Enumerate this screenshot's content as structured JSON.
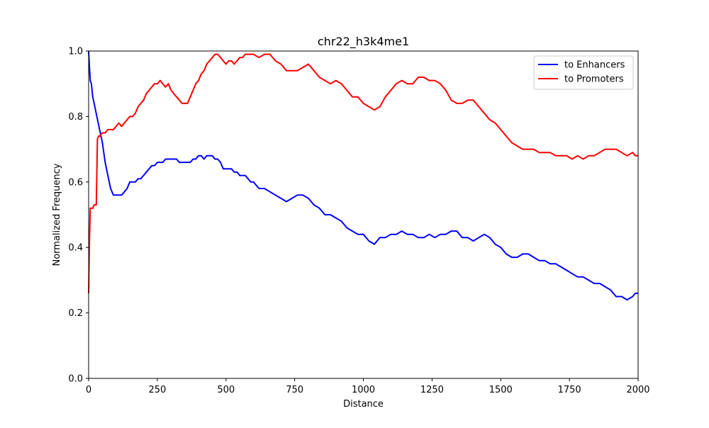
{
  "chart_data": {
    "type": "line",
    "title": "chr22_h3k4me1",
    "xlabel": "Distance",
    "ylabel": "Normalized Frequency",
    "xlim": [
      0,
      2000
    ],
    "ylim": [
      0,
      1
    ],
    "xticks": [
      "0",
      "250",
      "500",
      "750",
      "1000",
      "1250",
      "1500",
      "1750",
      "2000"
    ],
    "yticks": [
      "0.0",
      "0.2",
      "0.4",
      "0.6",
      "0.8",
      "1.0"
    ],
    "grid": false,
    "legend_position": "top-right",
    "series": [
      {
        "name": "to Enhancers",
        "color": "#0000ff",
        "x": [
          0,
          3,
          6,
          10,
          15,
          20,
          30,
          40,
          50,
          60,
          70,
          80,
          90,
          100,
          110,
          120,
          130,
          140,
          150,
          160,
          170,
          180,
          190,
          200,
          210,
          220,
          230,
          240,
          250,
          260,
          270,
          280,
          290,
          300,
          310,
          320,
          330,
          340,
          350,
          360,
          370,
          380,
          390,
          400,
          410,
          420,
          430,
          440,
          450,
          460,
          470,
          480,
          490,
          500,
          510,
          520,
          530,
          540,
          550,
          560,
          570,
          580,
          590,
          600,
          620,
          640,
          660,
          680,
          700,
          720,
          740,
          760,
          780,
          800,
          820,
          840,
          860,
          880,
          900,
          920,
          940,
          960,
          980,
          1000,
          1020,
          1040,
          1060,
          1080,
          1100,
          1120,
          1140,
          1160,
          1180,
          1200,
          1220,
          1240,
          1260,
          1280,
          1300,
          1320,
          1340,
          1360,
          1380,
          1400,
          1420,
          1440,
          1460,
          1480,
          1500,
          1520,
          1540,
          1560,
          1580,
          1600,
          1620,
          1640,
          1660,
          1680,
          1700,
          1720,
          1740,
          1760,
          1780,
          1800,
          1820,
          1840,
          1860,
          1880,
          1900,
          1920,
          1940,
          1960,
          1980,
          1990,
          2000
        ],
        "y": [
          1.0,
          0.95,
          0.91,
          0.9,
          0.86,
          0.84,
          0.8,
          0.76,
          0.72,
          0.66,
          0.62,
          0.58,
          0.56,
          0.56,
          0.56,
          0.56,
          0.57,
          0.58,
          0.6,
          0.6,
          0.6,
          0.61,
          0.61,
          0.62,
          0.63,
          0.64,
          0.65,
          0.65,
          0.66,
          0.66,
          0.66,
          0.67,
          0.67,
          0.67,
          0.67,
          0.67,
          0.66,
          0.66,
          0.66,
          0.66,
          0.66,
          0.67,
          0.67,
          0.68,
          0.68,
          0.67,
          0.68,
          0.68,
          0.68,
          0.67,
          0.67,
          0.66,
          0.64,
          0.64,
          0.64,
          0.64,
          0.63,
          0.63,
          0.62,
          0.62,
          0.62,
          0.61,
          0.6,
          0.6,
          0.58,
          0.58,
          0.57,
          0.56,
          0.55,
          0.54,
          0.55,
          0.56,
          0.56,
          0.55,
          0.53,
          0.52,
          0.5,
          0.5,
          0.49,
          0.48,
          0.46,
          0.45,
          0.44,
          0.44,
          0.42,
          0.41,
          0.43,
          0.43,
          0.44,
          0.44,
          0.45,
          0.44,
          0.44,
          0.43,
          0.43,
          0.44,
          0.43,
          0.44,
          0.44,
          0.45,
          0.45,
          0.43,
          0.43,
          0.42,
          0.43,
          0.44,
          0.43,
          0.41,
          0.4,
          0.38,
          0.37,
          0.37,
          0.38,
          0.38,
          0.37,
          0.36,
          0.36,
          0.35,
          0.35,
          0.34,
          0.33,
          0.32,
          0.31,
          0.31,
          0.3,
          0.29,
          0.29,
          0.28,
          0.27,
          0.25,
          0.25,
          0.24,
          0.25,
          0.26,
          0.26
        ]
      },
      {
        "name": "to Promoters",
        "color": "#ff0000",
        "x": [
          0,
          3,
          6,
          10,
          15,
          20,
          25,
          28,
          32,
          36,
          40,
          50,
          60,
          70,
          80,
          90,
          100,
          110,
          120,
          130,
          140,
          150,
          160,
          170,
          180,
          190,
          200,
          210,
          220,
          230,
          240,
          250,
          260,
          270,
          280,
          290,
          300,
          310,
          320,
          330,
          340,
          350,
          360,
          370,
          380,
          390,
          400,
          410,
          420,
          430,
          440,
          450,
          460,
          470,
          480,
          490,
          500,
          510,
          520,
          530,
          540,
          550,
          560,
          570,
          580,
          590,
          600,
          620,
          640,
          660,
          680,
          700,
          720,
          740,
          760,
          780,
          800,
          820,
          840,
          860,
          880,
          900,
          920,
          940,
          960,
          980,
          1000,
          1020,
          1040,
          1060,
          1080,
          1100,
          1120,
          1140,
          1160,
          1180,
          1200,
          1220,
          1240,
          1260,
          1280,
          1300,
          1320,
          1340,
          1360,
          1380,
          1400,
          1420,
          1440,
          1460,
          1480,
          1500,
          1520,
          1540,
          1560,
          1580,
          1600,
          1620,
          1640,
          1660,
          1680,
          1700,
          1720,
          1740,
          1760,
          1780,
          1800,
          1820,
          1840,
          1860,
          1880,
          1900,
          1920,
          1940,
          1960,
          1980,
          1990,
          2000
        ],
        "y": [
          0.26,
          0.42,
          0.52,
          0.52,
          0.52,
          0.53,
          0.53,
          0.53,
          0.73,
          0.74,
          0.74,
          0.75,
          0.75,
          0.76,
          0.76,
          0.76,
          0.77,
          0.78,
          0.77,
          0.78,
          0.79,
          0.8,
          0.8,
          0.81,
          0.83,
          0.84,
          0.85,
          0.87,
          0.88,
          0.89,
          0.9,
          0.9,
          0.91,
          0.9,
          0.89,
          0.9,
          0.88,
          0.87,
          0.86,
          0.85,
          0.84,
          0.84,
          0.84,
          0.86,
          0.88,
          0.9,
          0.91,
          0.93,
          0.94,
          0.96,
          0.97,
          0.98,
          0.99,
          0.99,
          0.98,
          0.97,
          0.96,
          0.97,
          0.97,
          0.96,
          0.97,
          0.98,
          0.98,
          0.99,
          0.99,
          0.99,
          0.99,
          0.98,
          0.99,
          0.99,
          0.97,
          0.96,
          0.94,
          0.94,
          0.94,
          0.95,
          0.96,
          0.94,
          0.92,
          0.91,
          0.9,
          0.91,
          0.9,
          0.88,
          0.86,
          0.86,
          0.84,
          0.83,
          0.82,
          0.83,
          0.86,
          0.88,
          0.9,
          0.91,
          0.9,
          0.9,
          0.92,
          0.92,
          0.91,
          0.91,
          0.9,
          0.88,
          0.85,
          0.84,
          0.84,
          0.85,
          0.85,
          0.83,
          0.81,
          0.79,
          0.78,
          0.76,
          0.74,
          0.72,
          0.71,
          0.7,
          0.7,
          0.7,
          0.69,
          0.69,
          0.69,
          0.68,
          0.68,
          0.68,
          0.67,
          0.68,
          0.67,
          0.68,
          0.68,
          0.69,
          0.7,
          0.7,
          0.7,
          0.69,
          0.68,
          0.69,
          0.68,
          0.68
        ]
      }
    ]
  }
}
